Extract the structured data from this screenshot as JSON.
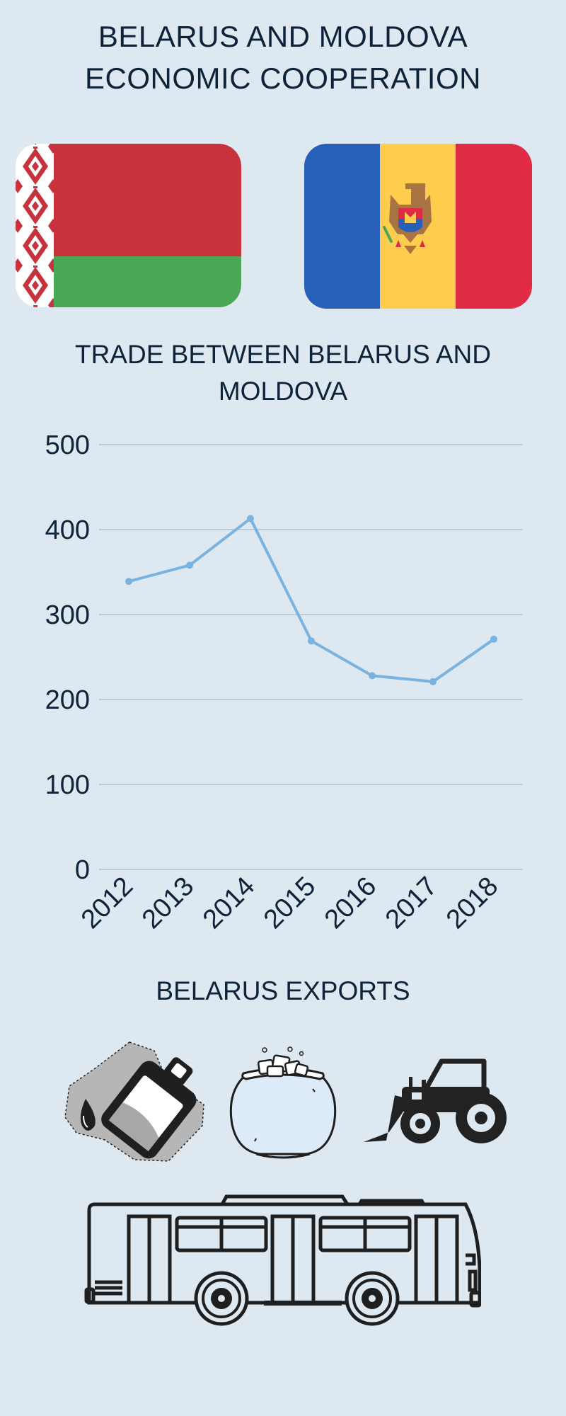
{
  "header": {
    "title_line1": "BELARUS AND MOLDOVA",
    "title_line2": "ECONOMIC COOPERATION"
  },
  "flags": {
    "left": {
      "name": "Belarus flag",
      "colors": {
        "red": "#c8323c",
        "green": "#4aa756",
        "ornament_red": "#c8323c",
        "ornament_white": "#ffffff"
      }
    },
    "right": {
      "name": "Moldova flag",
      "colors": {
        "blue": "#2660b8",
        "yellow": "#ffcd4e",
        "red": "#df2c44",
        "emblem_brown": "#a87443"
      }
    }
  },
  "trade_section": {
    "title_line1": "TRADE BETWEEN BELARUS AND",
    "title_line2": "MOLDOVA"
  },
  "chart_data": {
    "type": "line",
    "title": "TRADE BETWEEN BELARUS AND MOLDOVA",
    "categories": [
      "2012",
      "2013",
      "2014",
      "2015",
      "2016",
      "2017",
      "2018"
    ],
    "values": [
      339,
      358,
      413,
      269,
      228,
      221,
      271
    ],
    "yticks": [
      "0",
      "100",
      "200",
      "300",
      "400",
      "500"
    ],
    "ylim": [
      0,
      500
    ],
    "grid": true,
    "line_color": "#7ab3e0"
  },
  "exports_section": {
    "title": "BELARUS EXPORTS",
    "icons": [
      "oil-canister-icon",
      "sugar-pot-icon",
      "tractor-icon",
      "bus-icon"
    ]
  }
}
